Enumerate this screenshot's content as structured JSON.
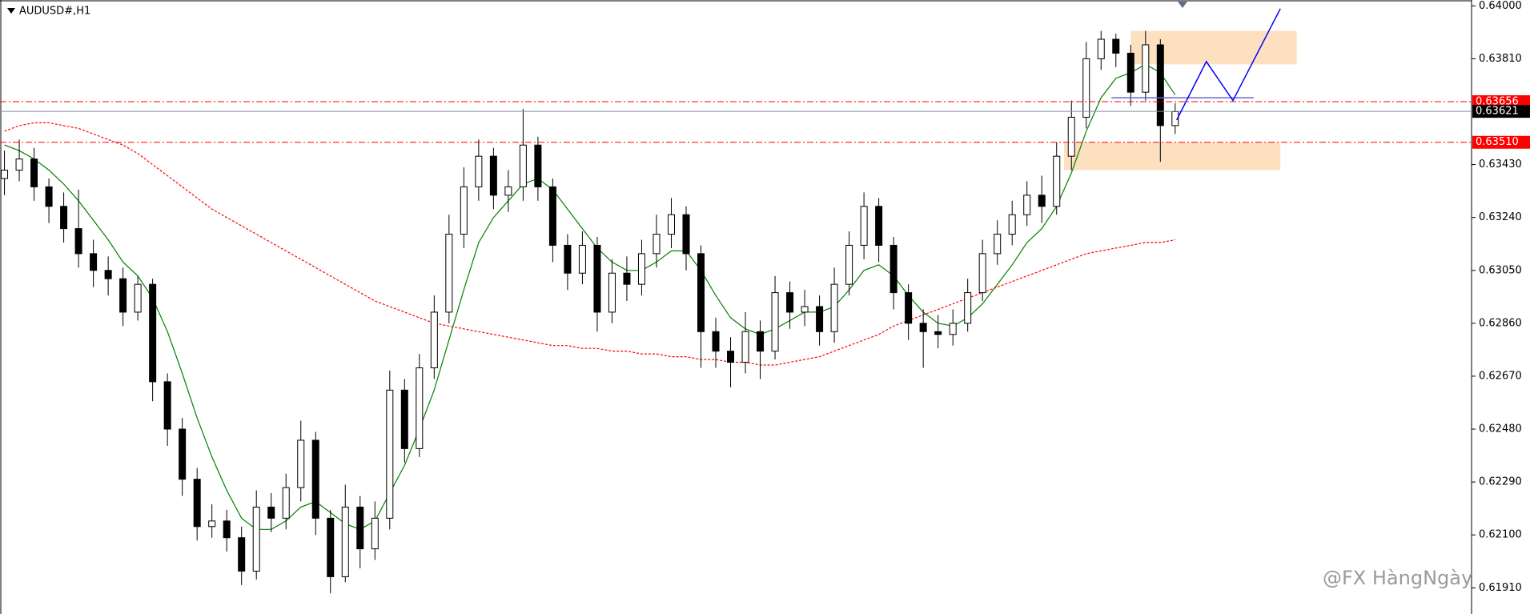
{
  "chart_data": {
    "type": "candlestick",
    "title": "AUDUSD#,H1",
    "watermark": "@FX HàngNgày",
    "xlim": [
      -0.3,
      99
    ],
    "ylim": [
      0.61816,
      0.64021
    ],
    "yticks": [
      {
        "value": 0.64,
        "label": "0.64000"
      },
      {
        "value": 0.6381,
        "label": "0.63810"
      },
      {
        "value": 0.6343,
        "label": "0.63430"
      },
      {
        "value": 0.6324,
        "label": "0.63240"
      },
      {
        "value": 0.6305,
        "label": "0.63050"
      },
      {
        "value": 0.6286,
        "label": "0.62860"
      },
      {
        "value": 0.6267,
        "label": "0.62670"
      },
      {
        "value": 0.6248,
        "label": "0.62480"
      },
      {
        "value": 0.6229,
        "label": "0.62290"
      },
      {
        "value": 0.621,
        "label": "0.62100"
      },
      {
        "value": 0.6191,
        "label": "0.61910"
      }
    ],
    "up_color": "#ffffff",
    "down_color": "#000000",
    "candles": {
      "open": [
        0.6338,
        0.6341,
        0.6345,
        0.6335,
        0.6328,
        0.632,
        0.6311,
        0.6305,
        0.6302,
        0.629,
        0.63,
        0.6265,
        0.6248,
        0.623,
        0.6213,
        0.6215,
        0.6209,
        0.6197,
        0.622,
        0.6216,
        0.6227,
        0.6244,
        0.6216,
        0.6195,
        0.622,
        0.6205,
        0.6216,
        0.6262,
        0.6241,
        0.627,
        0.629,
        0.6318,
        0.6335,
        0.6346,
        0.6332,
        0.6335,
        0.635,
        0.6335,
        0.6314,
        0.6304,
        0.6314,
        0.629,
        0.6304,
        0.63,
        0.6311,
        0.6318,
        0.6325,
        0.6311,
        0.6283,
        0.6276,
        0.6272,
        0.6283,
        0.6276,
        0.6297,
        0.629,
        0.6292,
        0.6283,
        0.63,
        0.6314,
        0.6328,
        0.6314,
        0.6297,
        0.6286,
        0.6283,
        0.6282,
        0.6286,
        0.6297,
        0.6311,
        0.6318,
        0.6325,
        0.6332,
        0.6328,
        0.6346,
        0.636,
        0.6381,
        0.6388,
        0.6383,
        0.6369,
        0.6386,
        0.6357
      ],
      "high": [
        0.6348,
        0.6352,
        0.6349,
        0.6338,
        0.6333,
        0.6334,
        0.6316,
        0.631,
        0.6306,
        0.6303,
        0.6302,
        0.6268,
        0.6252,
        0.6234,
        0.6221,
        0.6219,
        0.6213,
        0.6226,
        0.6225,
        0.6232,
        0.6251,
        0.6247,
        0.6219,
        0.6228,
        0.6224,
        0.6222,
        0.6269,
        0.6266,
        0.6275,
        0.6296,
        0.6325,
        0.6342,
        0.6352,
        0.6349,
        0.6341,
        0.6363,
        0.6353,
        0.6338,
        0.6318,
        0.6319,
        0.6317,
        0.6309,
        0.631,
        0.6316,
        0.6325,
        0.6331,
        0.6328,
        0.6314,
        0.6288,
        0.6281,
        0.629,
        0.6287,
        0.6303,
        0.6301,
        0.6298,
        0.6296,
        0.6306,
        0.6319,
        0.6333,
        0.6331,
        0.6317,
        0.63,
        0.6291,
        0.6289,
        0.6291,
        0.6302,
        0.6316,
        0.6323,
        0.633,
        0.6337,
        0.6339,
        0.6351,
        0.6366,
        0.6387,
        0.6391,
        0.639,
        0.6386,
        0.6391,
        0.6388,
        0.6365
      ],
      "low": [
        0.6332,
        0.6337,
        0.633,
        0.6322,
        0.6315,
        0.6306,
        0.6299,
        0.6296,
        0.6285,
        0.6287,
        0.6258,
        0.6242,
        0.6224,
        0.6208,
        0.6209,
        0.6204,
        0.6192,
        0.6194,
        0.6211,
        0.6212,
        0.6222,
        0.621,
        0.6189,
        0.6193,
        0.6198,
        0.6201,
        0.6212,
        0.6236,
        0.6238,
        0.6266,
        0.6286,
        0.6313,
        0.633,
        0.6327,
        0.6326,
        0.633,
        0.633,
        0.6308,
        0.6298,
        0.63,
        0.6283,
        0.6286,
        0.6294,
        0.6296,
        0.6306,
        0.6313,
        0.6305,
        0.627,
        0.627,
        0.6263,
        0.6268,
        0.6266,
        0.6273,
        0.6284,
        0.6285,
        0.6278,
        0.6279,
        0.6296,
        0.6309,
        0.6308,
        0.6291,
        0.628,
        0.627,
        0.6277,
        0.6278,
        0.6283,
        0.6294,
        0.6307,
        0.6314,
        0.6321,
        0.6322,
        0.6325,
        0.6341,
        0.6356,
        0.6377,
        0.6378,
        0.6364,
        0.6366,
        0.6344,
        0.6354
      ],
      "close": [
        0.6341,
        0.6345,
        0.6335,
        0.6328,
        0.632,
        0.6311,
        0.6305,
        0.6302,
        0.629,
        0.63,
        0.6265,
        0.6248,
        0.623,
        0.6213,
        0.6215,
        0.6209,
        0.6197,
        0.622,
        0.6216,
        0.6227,
        0.6244,
        0.6216,
        0.6195,
        0.622,
        0.6205,
        0.6216,
        0.6262,
        0.6241,
        0.627,
        0.629,
        0.6318,
        0.6335,
        0.6346,
        0.6332,
        0.6335,
        0.635,
        0.6335,
        0.6314,
        0.6304,
        0.6314,
        0.629,
        0.6304,
        0.63,
        0.6311,
        0.6318,
        0.6325,
        0.6311,
        0.6283,
        0.6276,
        0.6272,
        0.6283,
        0.6276,
        0.6297,
        0.629,
        0.6292,
        0.6283,
        0.63,
        0.6314,
        0.6328,
        0.6314,
        0.6297,
        0.6286,
        0.6283,
        0.6282,
        0.6286,
        0.6297,
        0.6311,
        0.6318,
        0.6325,
        0.6332,
        0.6328,
        0.6346,
        0.636,
        0.6381,
        0.6388,
        0.6383,
        0.6369,
        0.6386,
        0.6357,
        0.6362
      ]
    },
    "lines": [
      {
        "color": "#008000",
        "dashed": false,
        "values": [
          0.635,
          0.6348,
          0.6345,
          0.6341,
          0.6336,
          0.633,
          0.6323,
          0.6316,
          0.6308,
          0.6303,
          0.6295,
          0.6283,
          0.6268,
          0.6252,
          0.6238,
          0.6226,
          0.6216,
          0.6212,
          0.6212,
          0.6215,
          0.622,
          0.6222,
          0.6218,
          0.6214,
          0.6212,
          0.6215,
          0.6225,
          0.6235,
          0.6248,
          0.6262,
          0.628,
          0.6298,
          0.6315,
          0.6324,
          0.633,
          0.6336,
          0.6338,
          0.6334,
          0.6327,
          0.632,
          0.6313,
          0.6308,
          0.6305,
          0.6305,
          0.6308,
          0.6312,
          0.6312,
          0.6305,
          0.6296,
          0.6288,
          0.6284,
          0.6282,
          0.6284,
          0.6287,
          0.629,
          0.629,
          0.6292,
          0.6298,
          0.6305,
          0.6307,
          0.6303,
          0.6296,
          0.629,
          0.6286,
          0.6285,
          0.6288,
          0.6293,
          0.63,
          0.6307,
          0.6315,
          0.632,
          0.6328,
          0.634,
          0.6355,
          0.6367,
          0.6374,
          0.6376,
          0.6379,
          0.6376,
          0.6368
        ]
      },
      {
        "color": "#ff0000",
        "dashed": true,
        "values": [
          0.6355,
          0.6357,
          0.6358,
          0.6358,
          0.6357,
          0.6356,
          0.6354,
          0.6352,
          0.635,
          0.6347,
          0.6343,
          0.6339,
          0.6335,
          0.6331,
          0.6327,
          0.6324,
          0.6321,
          0.6318,
          0.6315,
          0.6312,
          0.6309,
          0.6306,
          0.6303,
          0.63,
          0.6297,
          0.6294,
          0.6292,
          0.629,
          0.6288,
          0.6286,
          0.6285,
          0.6284,
          0.6283,
          0.6282,
          0.6281,
          0.628,
          0.6279,
          0.6278,
          0.6278,
          0.6277,
          0.6277,
          0.6276,
          0.6276,
          0.6275,
          0.6275,
          0.6274,
          0.6274,
          0.6273,
          0.6273,
          0.6272,
          0.6272,
          0.6271,
          0.6271,
          0.6272,
          0.6273,
          0.6274,
          0.6276,
          0.6278,
          0.628,
          0.6282,
          0.6285,
          0.6287,
          0.6289,
          0.6291,
          0.6293,
          0.6295,
          0.6297,
          0.6299,
          0.6301,
          0.6303,
          0.6305,
          0.6307,
          0.6309,
          0.6311,
          0.6312,
          0.6313,
          0.6314,
          0.6315,
          0.6315,
          0.6316
        ]
      }
    ],
    "levels": [
      {
        "value": 0.63656,
        "label": "0.63656",
        "color": "#ff0000",
        "dashed": true
      },
      {
        "value": 0.63621,
        "label": "0.63621",
        "color": "#000000",
        "dashed": false
      },
      {
        "value": 0.6351,
        "label": "0.63510",
        "color": "#ff0000",
        "dashed": true
      }
    ],
    "zones": [
      {
        "x": [
          76.0,
          87.2
        ],
        "y": [
          0.6379,
          0.6391
        ],
        "color": "#fde0c0"
      },
      {
        "x": [
          71.5,
          86.1
        ],
        "y": [
          0.6341,
          0.6351
        ],
        "color": "#fde0c0"
      }
    ],
    "drawings": [
      {
        "x": [
          74.7,
          84.3
        ],
        "y": [
          0.6367,
          0.6367
        ],
        "color": "#6666cc"
      },
      {
        "x": [
          79.1,
          81.1,
          82.9,
          86.1
        ],
        "y": [
          0.6359,
          0.638,
          0.6366,
          0.6399
        ],
        "color": "#0000ff"
      }
    ]
  }
}
